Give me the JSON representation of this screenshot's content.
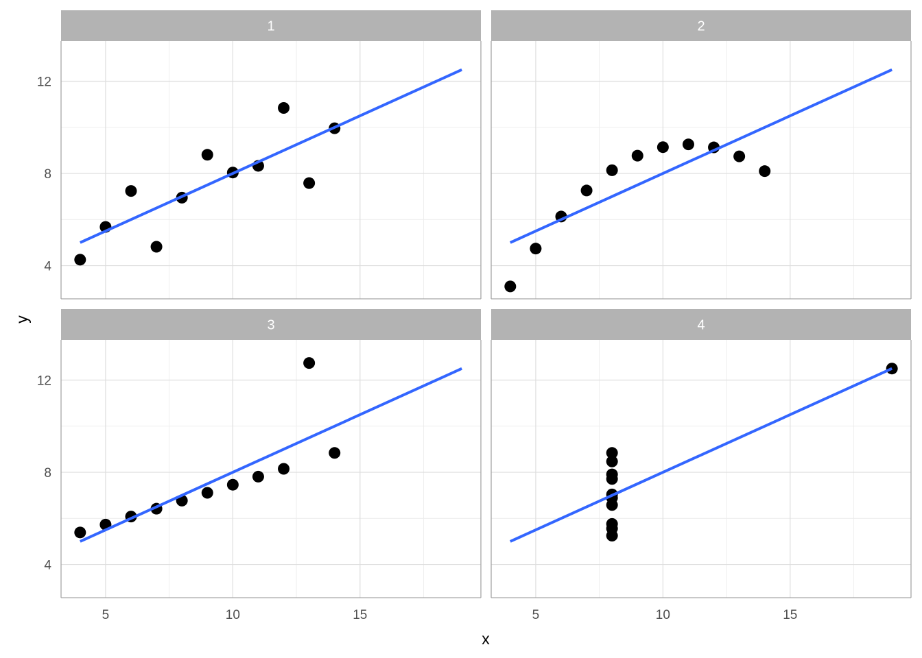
{
  "chart_data": {
    "type": "scatter",
    "xlabel": "x",
    "ylabel": "y",
    "xlim": [
      3.25,
      19.75
    ],
    "ylim": [
      2.56,
      13.74
    ],
    "x_ticks": [
      5,
      10,
      15
    ],
    "y_ticks": [
      4,
      8,
      12
    ],
    "x_tick_labels": [
      "5",
      "10",
      "15"
    ],
    "y_tick_labels": [
      "4",
      "8",
      "12"
    ],
    "grid": true,
    "point_color": "#000000",
    "line_color": "#3366FF",
    "strip_color": "#b3b3b3",
    "facets": [
      {
        "label": "1",
        "x": [
          10,
          8,
          13,
          9,
          11,
          14,
          6,
          4,
          12,
          7,
          5
        ],
        "y": [
          8.04,
          6.95,
          7.58,
          8.81,
          8.33,
          9.96,
          7.24,
          4.26,
          10.84,
          4.82,
          5.68
        ],
        "fit": {
          "x": [
            4,
            19
          ],
          "y": [
            5.0,
            12.5
          ]
        }
      },
      {
        "label": "2",
        "x": [
          10,
          8,
          13,
          9,
          11,
          14,
          6,
          4,
          12,
          7,
          5
        ],
        "y": [
          9.14,
          8.14,
          8.74,
          8.77,
          9.26,
          8.1,
          6.13,
          3.1,
          9.13,
          7.26,
          4.74
        ],
        "fit": {
          "x": [
            4,
            19
          ],
          "y": [
            5.0,
            12.5
          ]
        }
      },
      {
        "label": "3",
        "x": [
          10,
          8,
          13,
          9,
          11,
          14,
          6,
          4,
          12,
          7,
          5
        ],
        "y": [
          7.46,
          6.77,
          12.74,
          7.11,
          7.81,
          8.84,
          6.08,
          5.39,
          8.15,
          6.42,
          5.73
        ],
        "fit": {
          "x": [
            4,
            19
          ],
          "y": [
            5.0,
            12.5
          ]
        }
      },
      {
        "label": "4",
        "x": [
          8,
          8,
          8,
          8,
          8,
          8,
          8,
          19,
          8,
          8,
          8
        ],
        "y": [
          6.58,
          5.76,
          7.71,
          8.84,
          8.47,
          7.04,
          5.25,
          12.5,
          5.56,
          7.91,
          6.89
        ],
        "fit": {
          "x": [
            4,
            19
          ],
          "y": [
            5.0,
            12.5
          ]
        }
      }
    ]
  }
}
